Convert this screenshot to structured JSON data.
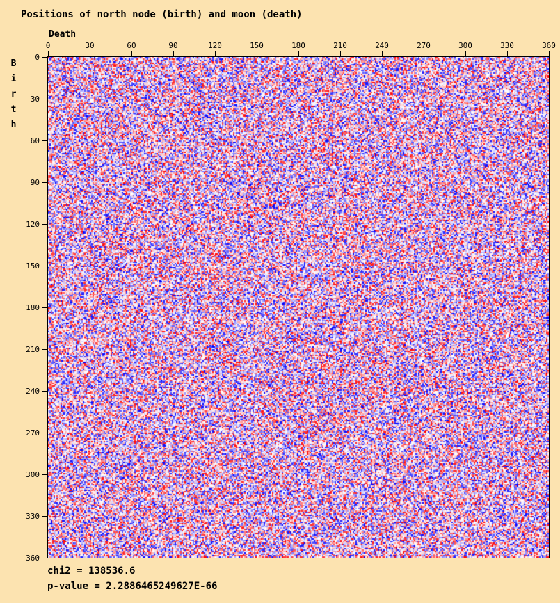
{
  "colors": {
    "background": "#fce3b0",
    "text": "#000000",
    "plot_border": "#000000"
  },
  "header": {
    "title": "Positions of north node (birth) and moon (death)"
  },
  "axes": {
    "x_label": "Death",
    "y_label": "Birth",
    "x_ticks": [
      0,
      30,
      60,
      90,
      120,
      150,
      180,
      210,
      240,
      270,
      300,
      330,
      360
    ],
    "y_ticks": [
      0,
      30,
      60,
      90,
      120,
      150,
      180,
      210,
      240,
      270,
      300,
      330,
      360
    ]
  },
  "footer": {
    "chi2_line": "chi2 = 138536.6",
    "p_value_line": "p-value = 2.2886465249627E-66"
  },
  "chart_data": {
    "type": "heatmap",
    "title": "Positions of north node (birth) and moon (death)",
    "xlabel": "Death",
    "ylabel": "Birth",
    "x_range": [
      0,
      360
    ],
    "y_range": [
      0,
      360
    ],
    "x_tick_step": 30,
    "y_tick_step": 30,
    "grid_cols": 360,
    "grid_rows": 360,
    "legend": "none",
    "grid": "off",
    "colormap": {
      "negative": "#0000ff",
      "zero": "#ffffff",
      "positive": "#ff0000"
    },
    "cell_values": "360x360 grid of pseudo-random chi-square residuals; positive residuals shade white-to-red, negative residuals shade white-to-blue, magnitude = color saturation",
    "seed": 987654321,
    "intensity_exponent": 1.4,
    "chi2": 138536.6,
    "p_value": "2.2886465249627E-66"
  }
}
